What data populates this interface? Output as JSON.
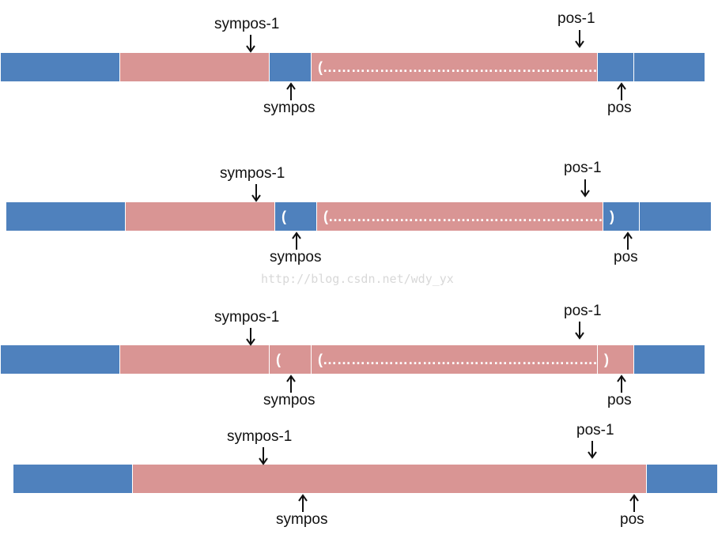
{
  "colors": {
    "blue": "#4f81bd",
    "pink": "#d99594",
    "arrow": "#111111"
  },
  "watermark": "http://blog.csdn.net/wdy_yx",
  "diagrams": [
    {
      "top_left_label": "sympos-1",
      "top_right_label": "pos-1",
      "bottom_left_label": "sympos",
      "bottom_right_label": "pos",
      "segments": [
        {
          "color": "blue",
          "text": ""
        },
        {
          "color": "pink",
          "text": ""
        },
        {
          "color": "blue",
          "text": ""
        },
        {
          "color": "pink",
          "text": "(………………………………………………….)"
        },
        {
          "color": "blue",
          "text": ""
        },
        {
          "color": "blue",
          "text": ""
        }
      ]
    },
    {
      "top_left_label": "sympos-1",
      "top_right_label": "pos-1",
      "bottom_left_label": "sympos",
      "bottom_right_label": "pos",
      "segments": [
        {
          "color": "blue",
          "text": ""
        },
        {
          "color": "pink",
          "text": ""
        },
        {
          "color": "blue",
          "text": "("
        },
        {
          "color": "pink",
          "text": "(………………………………………………….)"
        },
        {
          "color": "blue",
          "text": ")"
        },
        {
          "color": "blue",
          "text": ""
        }
      ]
    },
    {
      "top_left_label": "sympos-1",
      "top_right_label": "pos-1",
      "bottom_left_label": "sympos",
      "bottom_right_label": "pos",
      "segments": [
        {
          "color": "blue",
          "text": ""
        },
        {
          "color": "pink",
          "text": ""
        },
        {
          "color": "pink",
          "text": "("
        },
        {
          "color": "pink",
          "text": "(………………………………………………….)"
        },
        {
          "color": "pink",
          "text": ")"
        },
        {
          "color": "blue",
          "text": ""
        }
      ]
    },
    {
      "top_left_label": "sympos-1",
      "top_right_label": "pos-1",
      "bottom_left_label": "sympos",
      "bottom_right_label": "pos",
      "segments": [
        {
          "color": "blue",
          "text": ""
        },
        {
          "color": "pink",
          "text": ""
        },
        {
          "color": "blue",
          "text": ""
        }
      ]
    }
  ]
}
